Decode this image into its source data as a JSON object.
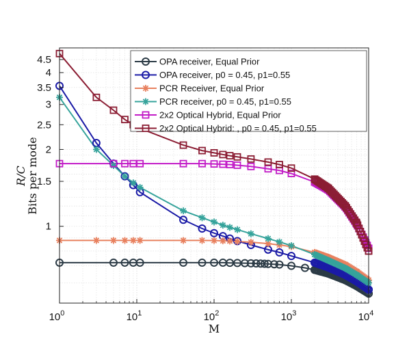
{
  "chart_data": {
    "type": "line",
    "xlabel": "M",
    "ylabel_math": "R/C",
    "ylabel": "Bits per mode",
    "x_scale": "log",
    "y_scale": "log",
    "xlim": [
      1,
      10000
    ],
    "ylim": [
      0.5,
      5
    ],
    "grid": true,
    "legend_position": "top-right",
    "x_ticks": [
      {
        "base": "10",
        "exp": "0",
        "value": 1
      },
      {
        "base": "10",
        "exp": "1",
        "value": 10
      },
      {
        "base": "10",
        "exp": "2",
        "value": 100
      },
      {
        "base": "10",
        "exp": "3",
        "value": 1000
      },
      {
        "base": "10",
        "exp": "4",
        "value": 10000
      }
    ],
    "y_ticks": [
      {
        "label": "1",
        "value": 1
      },
      {
        "label": "1.5",
        "value": 1.5
      },
      {
        "label": "2",
        "value": 2
      },
      {
        "label": "2.5",
        "value": 2.5
      },
      {
        "label": "3",
        "value": 3
      },
      {
        "label": "3.5",
        "value": 3.5
      },
      {
        "label": "4",
        "value": 4
      },
      {
        "label": "4.5",
        "value": 4.5
      }
    ],
    "series": [
      {
        "name": "OPA receiver, Equal Prior",
        "color": "#2b3a45",
        "marker": "circle",
        "x": [
          1,
          5,
          7,
          9,
          11,
          40,
          70,
          100,
          130,
          160,
          200,
          250,
          300,
          350,
          400,
          450,
          500,
          600,
          700,
          1000,
          1500,
          2000,
          3000,
          5000,
          7000,
          10000
        ],
        "y": [
          0.72,
          0.72,
          0.72,
          0.72,
          0.72,
          0.72,
          0.72,
          0.72,
          0.72,
          0.719,
          0.718,
          0.717,
          0.716,
          0.715,
          0.714,
          0.713,
          0.712,
          0.71,
          0.708,
          0.7,
          0.687,
          0.675,
          0.653,
          0.615,
          0.583,
          0.545
        ]
      },
      {
        "name": "OPA receiver, p0 = 0.45, p1=0.55",
        "color": "#1a1aa6",
        "marker": "circle",
        "x": [
          1,
          3,
          5,
          7,
          9,
          11,
          40,
          70,
          100,
          130,
          160,
          200,
          300,
          500,
          700,
          1000,
          2000,
          3000,
          5000,
          7000,
          10000
        ],
        "y": [
          3.55,
          2.12,
          1.76,
          1.57,
          1.45,
          1.36,
          1.06,
          0.98,
          0.94,
          0.915,
          0.895,
          0.875,
          0.845,
          0.81,
          0.79,
          0.765,
          0.72,
          0.69,
          0.645,
          0.608,
          0.565
        ]
      },
      {
        "name": "PCR Receiver, Equal Prior",
        "color": "#e8805e",
        "marker": "star",
        "x": [
          1,
          3,
          5,
          7,
          9,
          11,
          40,
          70,
          100,
          130,
          160,
          200,
          300,
          500,
          700,
          1000,
          2000,
          3000,
          5000,
          7000,
          10000
        ],
        "y": [
          0.88,
          0.88,
          0.88,
          0.88,
          0.88,
          0.88,
          0.88,
          0.88,
          0.879,
          0.877,
          0.875,
          0.872,
          0.866,
          0.855,
          0.845,
          0.832,
          0.79,
          0.757,
          0.708,
          0.665,
          0.615
        ]
      },
      {
        "name": "PCR receiver, p0 = 0.45, p1=0.55",
        "color": "#35a39b",
        "marker": "star",
        "x": [
          1,
          3,
          5,
          7,
          9,
          11,
          40,
          70,
          100,
          130,
          160,
          200,
          300,
          500,
          700,
          1000,
          2000,
          3000,
          5000,
          7000,
          10000
        ],
        "y": [
          3.2,
          2.0,
          1.73,
          1.57,
          1.48,
          1.42,
          1.15,
          1.08,
          1.04,
          1.01,
          0.99,
          0.97,
          0.935,
          0.895,
          0.868,
          0.84,
          0.775,
          0.735,
          0.685,
          0.645,
          0.6
        ]
      },
      {
        "name": "2x2 Optical Hybrid, Equal Prior",
        "color": "#c21bc7",
        "marker": "square",
        "x": [
          1,
          5,
          7,
          9,
          11,
          40,
          70,
          100,
          130,
          160,
          200,
          300,
          500,
          700,
          1000,
          2000,
          3000,
          5000,
          7000,
          10000
        ],
        "y": [
          1.76,
          1.76,
          1.76,
          1.76,
          1.76,
          1.76,
          1.76,
          1.755,
          1.75,
          1.745,
          1.735,
          1.715,
          1.68,
          1.655,
          1.61,
          1.49,
          1.39,
          1.19,
          1.02,
          0.82
        ]
      },
      {
        "name": "2x2 Optical Hybrid: , p0 = 0.45, p1=0.55",
        "color": "#8b1d33",
        "marker": "square",
        "x": [
          1,
          3,
          5,
          7,
          9,
          11,
          40,
          70,
          100,
          130,
          160,
          200,
          300,
          500,
          700,
          1000,
          2000,
          3000,
          5000,
          7000,
          10000
        ],
        "y": [
          4.75,
          3.2,
          2.85,
          2.62,
          2.5,
          2.42,
          2.08,
          1.98,
          1.94,
          1.91,
          1.89,
          1.87,
          1.835,
          1.785,
          1.745,
          1.69,
          1.53,
          1.41,
          1.2,
          1.03,
          0.8
        ]
      }
    ]
  }
}
